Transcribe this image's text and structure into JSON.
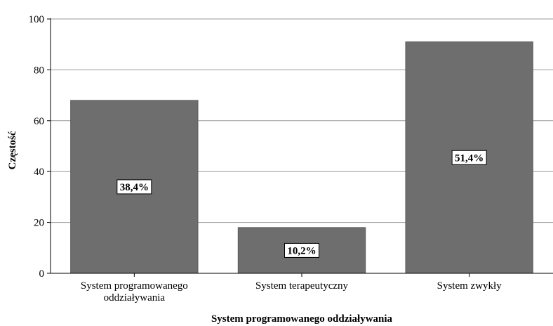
{
  "chart_data": {
    "type": "bar",
    "categories": [
      [
        "System programowanego",
        "oddziaływania"
      ],
      [
        "System terapeutyczny"
      ],
      [
        "System zwykły"
      ]
    ],
    "values": [
      68,
      18,
      91
    ],
    "data_labels": [
      "38,4%",
      "10,2%",
      "51,4%"
    ],
    "xlabel": "System programowanego oddziaływania",
    "ylabel": "Częstość",
    "ylim": [
      0,
      100
    ],
    "yticks": [
      0,
      20,
      40,
      60,
      80,
      100
    ],
    "grid": true,
    "colors": {
      "bar": "#6e6e6e",
      "bar_border": "#5a5a5a",
      "grid": "#9a9a9a",
      "axis": "#000000"
    }
  }
}
